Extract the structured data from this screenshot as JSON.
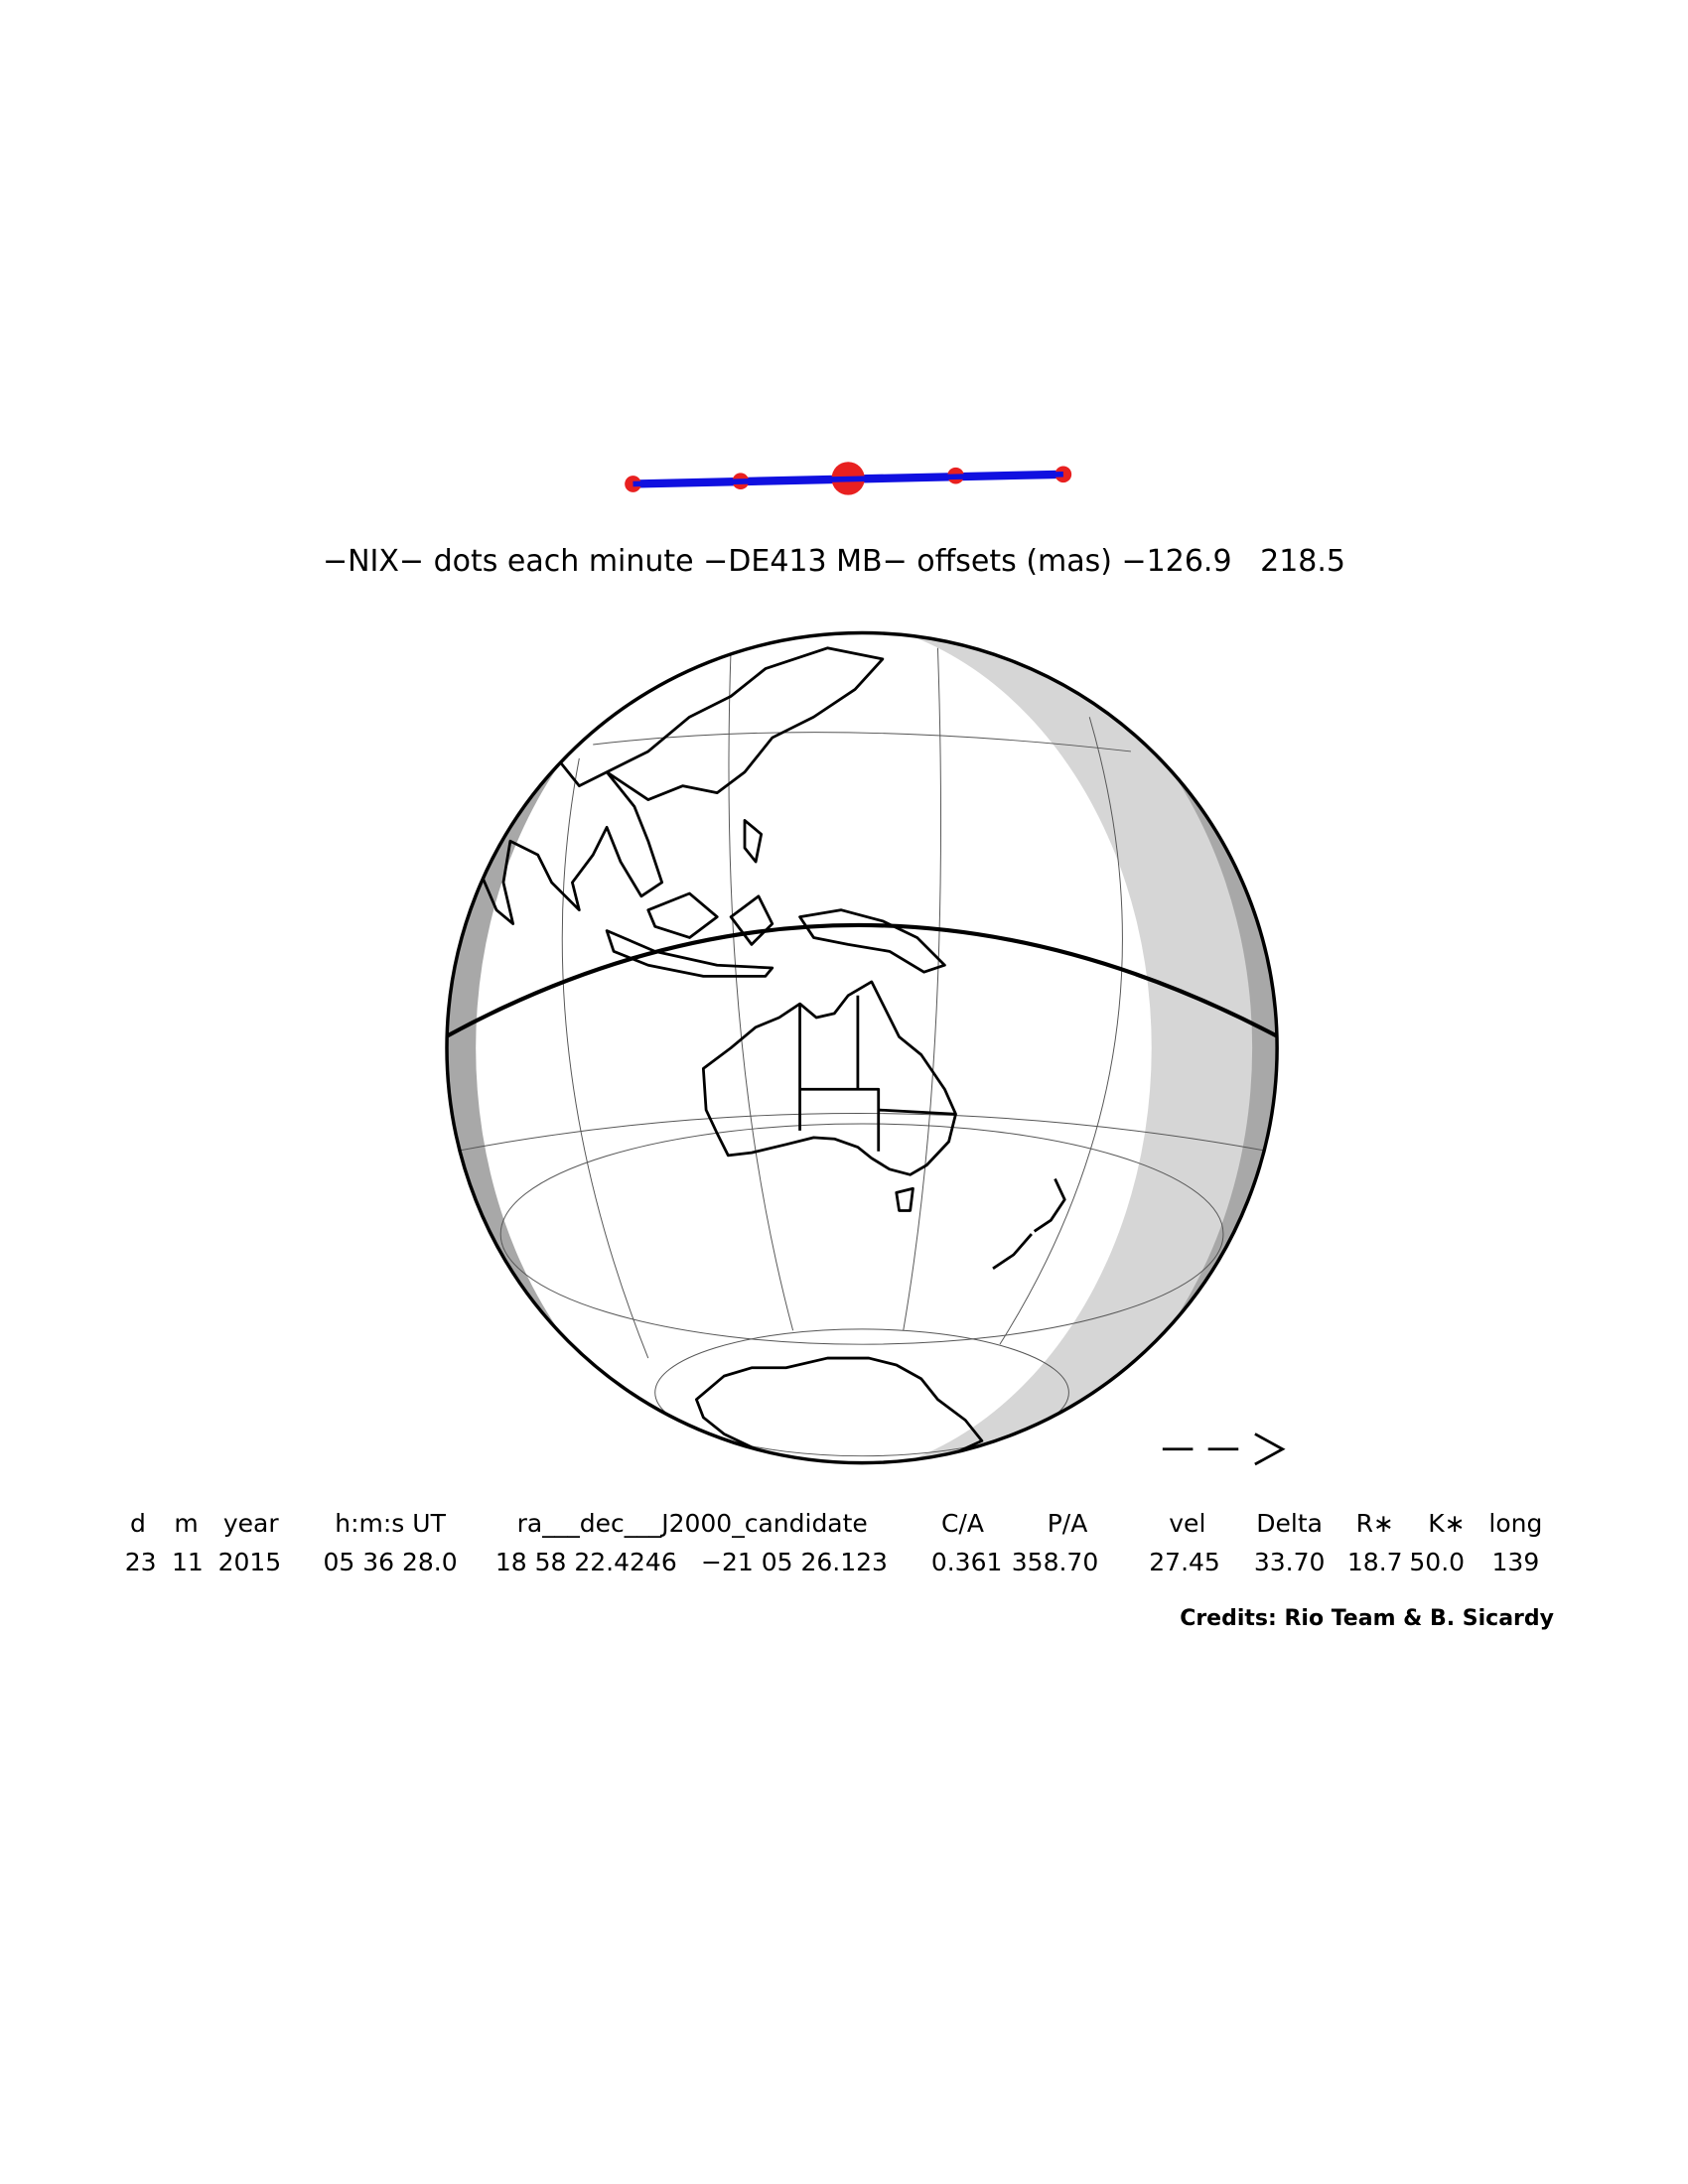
{
  "title": "−NIX− dots each minute −DE413 MB− offsets (mas) −126.9   218.5",
  "table": {
    "headers": [
      "d",
      "m",
      "year",
      "h:m:s UT",
      "ra___dec___J2000_candidate",
      "C/A",
      "P/A",
      "vel",
      "Delta",
      "R∗",
      "K∗",
      "long"
    ],
    "rows": [
      [
        "23",
        "11",
        "2015",
        "05 36 28.0",
        "18 58 22.4246",
        "−21 05 26.123",
        "0.361",
        "358.70",
        "27.45",
        "33.70",
        "18.7",
        "50.0",
        "139"
      ]
    ]
  },
  "credits": "Credits: Rio Team & B. Sicardy"
}
